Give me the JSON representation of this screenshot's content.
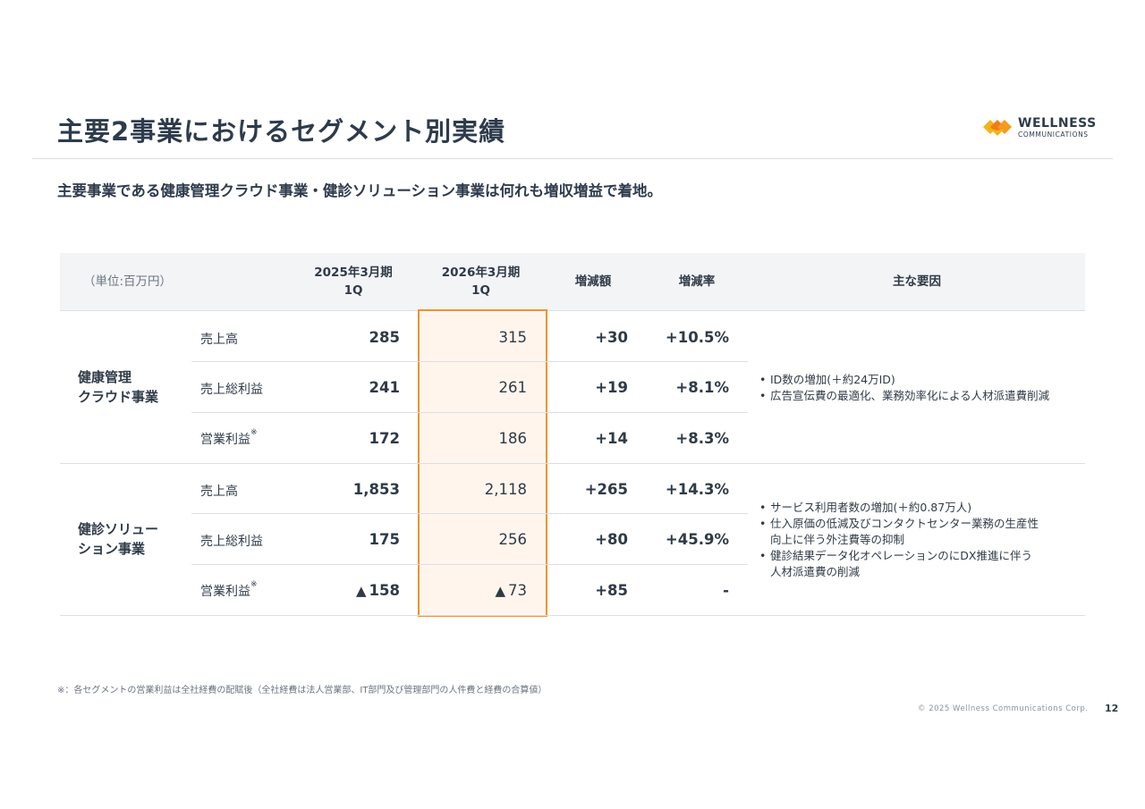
{
  "header": {
    "title": "主要2事業におけるセグメント別実績",
    "subtitle": "主要事業である健康管理クラウド事業・健診ソリューション事業は何れも増収増益で着地。"
  },
  "logo": {
    "name": "WELLNESS",
    "sub": "COMMUNICATIONS",
    "colors": [
      "#f7b21a",
      "#ef7d1a"
    ]
  },
  "table": {
    "unit_label": "（単位:百万円）",
    "columns": {
      "prev_line1": "2025年3月期",
      "prev_line2": "1Q",
      "curr_line1": "2026年3月期",
      "curr_line2": "1Q",
      "diff": "増減額",
      "rate": "増減率",
      "factors": "主な要因"
    },
    "highlight_color": "#f0922e",
    "segments": [
      {
        "name_line1": "健康管理",
        "name_line2": "クラウド事業",
        "rows": [
          {
            "label": "売上高",
            "note": "",
            "prev": "285",
            "prev_neg": "",
            "curr": "315",
            "curr_neg": "",
            "diff": "+30",
            "rate": "+10.5%"
          },
          {
            "label": "売上総利益",
            "note": "",
            "prev": "241",
            "prev_neg": "",
            "curr": "261",
            "curr_neg": "",
            "diff": "+19",
            "rate": "+8.1%"
          },
          {
            "label": "営業利益",
            "note": "※",
            "prev": "172",
            "prev_neg": "",
            "curr": "186",
            "curr_neg": "",
            "diff": "+14",
            "rate": "+8.3%"
          }
        ],
        "factors": [
          "ID数の増加(＋約24万ID)",
          "広告宣伝費の最適化、業務効率化による人材派遣費削減"
        ]
      },
      {
        "name_line1": "健診ソリュー",
        "name_line2": "ション事業",
        "rows": [
          {
            "label": "売上高",
            "note": "",
            "prev": "1,853",
            "prev_neg": "",
            "curr": "2,118",
            "curr_neg": "",
            "diff": "+265",
            "rate": "+14.3%"
          },
          {
            "label": "売上総利益",
            "note": "",
            "prev": "175",
            "prev_neg": "",
            "curr": "256",
            "curr_neg": "",
            "diff": "+80",
            "rate": "+45.9%"
          },
          {
            "label": "営業利益",
            "note": "※",
            "prev": "158",
            "prev_neg": "▲",
            "curr": "73",
            "curr_neg": "▲",
            "diff": "+85",
            "rate": "-"
          }
        ],
        "factors": [
          "サービス利用者数の増加(＋約0.87万人)",
          "仕入原価の低減及びコンタクトセンター業務の生産性",
          "向上に伴う外注費等の抑制",
          "健診結果データ化オペレーションのにDX推進に伴う",
          "人材派遣費の削減"
        ]
      }
    ]
  },
  "footer": {
    "note": "※：各セグメントの営業利益は全社経費の配賦後（全社経費は法人営業部、IT部門及び管理部門の人件費と経費の合算値）",
    "copyright": "© 2025 Wellness Communications Corp.",
    "page": "12"
  }
}
